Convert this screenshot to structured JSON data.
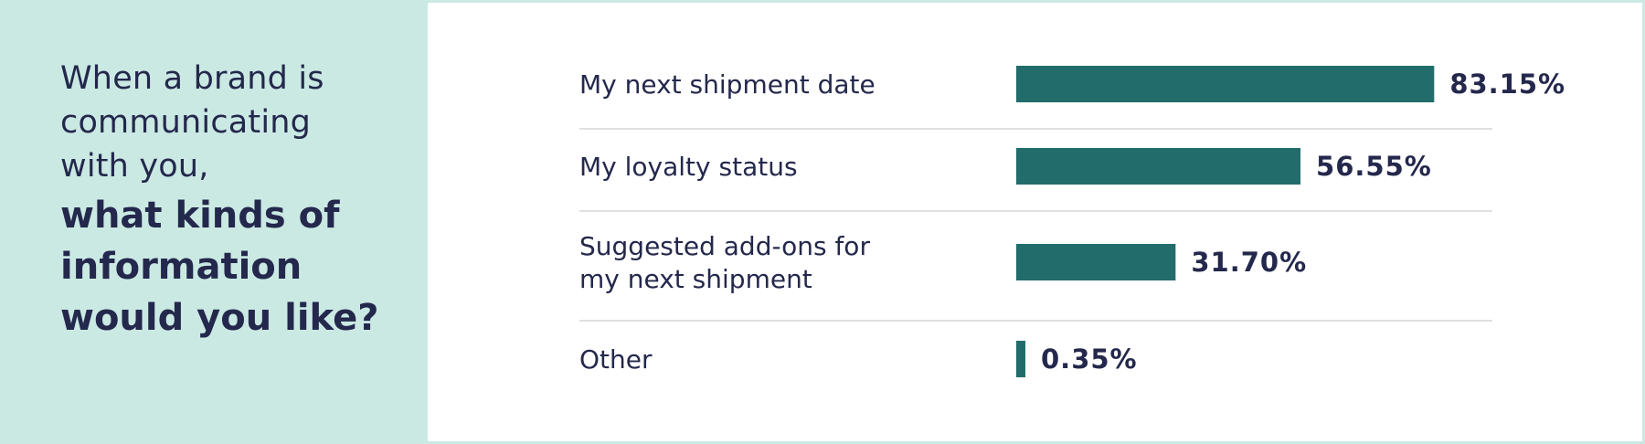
{
  "question": {
    "intro": "When a brand is\ncommunicating\nwith you,",
    "emphasis": "what kinds of\ninformation\nwould you like?"
  },
  "colors": {
    "left_background": "#cae9e3",
    "panel_background": "#ffffff",
    "bar": "#226d6b",
    "text": "#24284c",
    "divider": "#d6d6d6"
  },
  "chart_data": {
    "type": "bar",
    "orientation": "horizontal",
    "title": "",
    "xlabel": "",
    "ylabel": "",
    "categories": [
      "My next shipment date",
      "My loyalty status",
      "Suggested add-ons for my next shipment",
      "Other"
    ],
    "values": [
      83.15,
      56.55,
      31.7,
      0.35
    ],
    "value_labels": [
      "83.15%",
      "56.55%",
      "31.70%",
      "0.35%"
    ],
    "xlim": [
      0,
      100
    ],
    "grid": false,
    "legend": "none"
  }
}
